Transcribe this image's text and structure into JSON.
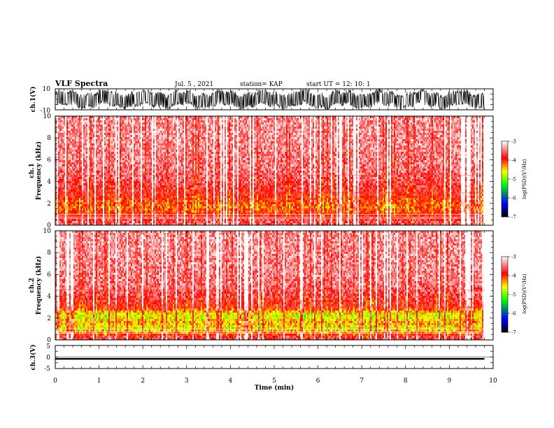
{
  "header": {
    "title": "VLF Spectra",
    "date": "Jul. 5 , 2021",
    "station": "station= KAP",
    "start": "start UT = 12: 10: 1"
  },
  "colors": {
    "background": "#ffffff",
    "trace": "#000000",
    "colormap": [
      "#000000",
      "#0000ff",
      "#00ff00",
      "#ffff00",
      "#ff0000",
      "#ffffff"
    ]
  },
  "chart_data": [
    {
      "type": "line",
      "panel": "ch1",
      "ylabel": "ch.1(V)",
      "ylim": [
        -10,
        10
      ],
      "ytick_labels": [
        "10",
        "-10"
      ],
      "xlim": [
        0,
        10
      ],
      "x_extent": [
        0,
        9.8
      ],
      "note_fill_range": [
        -6,
        7
      ]
    },
    {
      "type": "heatmap",
      "panel": "spec1",
      "ylabel": "ch.1",
      "ylabel2": "Frequency (kHz)",
      "ylim": [
        0,
        10
      ],
      "ytick_labels": [
        "0",
        "2",
        "4",
        "6",
        "8",
        "10"
      ],
      "xlim": [
        0,
        10
      ],
      "x_extent": [
        0,
        9.8
      ],
      "colorbar": {
        "label": "log(PSD)(V²/Hz)",
        "range": [
          -7,
          -3
        ],
        "tick_labels": [
          "-3",
          "-4",
          "-5",
          "-6",
          "-7"
        ]
      },
      "band_profile": [
        {
          "f": 0.3,
          "level": -3.6
        },
        {
          "f": 1.0,
          "level": -3.9
        },
        {
          "f": 1.6,
          "level": -4.2
        },
        {
          "f": 2.2,
          "level": -4.0
        },
        {
          "f": 3.0,
          "level": -3.8
        },
        {
          "f": 5.0,
          "level": -3.5
        },
        {
          "f": 8.0,
          "level": -3.4
        }
      ]
    },
    {
      "type": "heatmap",
      "panel": "spec2",
      "ylabel": "ch.2",
      "ylabel2": "Frequency (kHz)",
      "ylim": [
        0,
        10
      ],
      "ytick_labels": [
        "0",
        "2",
        "4",
        "6",
        "8",
        "10"
      ],
      "xlim": [
        0,
        10
      ],
      "x_extent": [
        0,
        9.8
      ],
      "colorbar": {
        "label": "log(PSD)(V²/Hz)",
        "range": [
          -7,
          -3
        ],
        "tick_labels": [
          "-3",
          "-4",
          "-5",
          "-6",
          "-7"
        ]
      },
      "band_profile": [
        {
          "f": 0.3,
          "level": -3.7
        },
        {
          "f": 1.0,
          "level": -4.6
        },
        {
          "f": 1.6,
          "level": -4.3
        },
        {
          "f": 2.2,
          "level": -4.7
        },
        {
          "f": 3.0,
          "level": -3.9
        },
        {
          "f": 5.0,
          "level": -3.5
        },
        {
          "f": 8.0,
          "level": -3.4
        }
      ]
    },
    {
      "type": "line",
      "panel": "ch3",
      "ylabel": "ch.3(V)",
      "ylim": [
        -5,
        5
      ],
      "ytick_labels": [
        "5",
        "0",
        "-5"
      ],
      "xlim": [
        0,
        10
      ],
      "x_extent": [
        0,
        9.8
      ],
      "level": -0.8
    }
  ],
  "xaxis": {
    "label": "Time (min)",
    "tick_labels": [
      "0",
      "1",
      "2",
      "3",
      "4",
      "5",
      "6",
      "7",
      "8",
      "9",
      "10"
    ]
  }
}
